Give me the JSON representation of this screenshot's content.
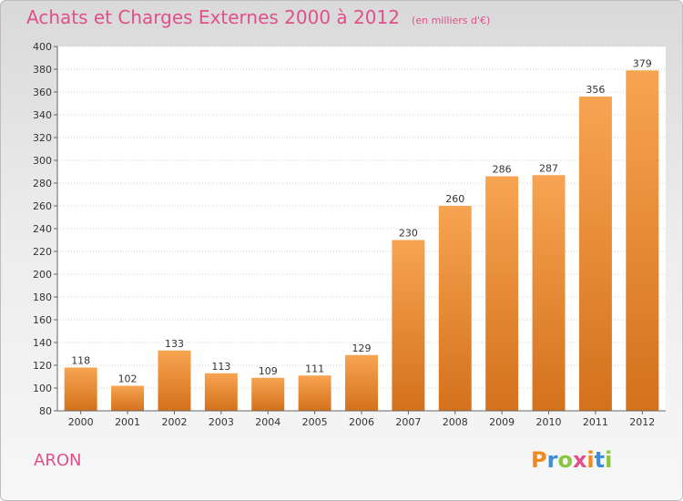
{
  "header": {
    "title": "Achats et Charges Externes 2000 à 2012",
    "subtitle": "(en milliers d'€)"
  },
  "footer": {
    "commune": "ARON",
    "logo": "Proxiti"
  },
  "colors": {
    "title": "#e0508a",
    "bar_top": "#f7a452",
    "bar_bottom": "#d4711c",
    "logo_letters": [
      "#f08a1d",
      "#3b8fd6",
      "#8cc63e",
      "#e0508a",
      "#f08a1d",
      "#3b8fd6",
      "#8cc63e"
    ]
  },
  "chart_data": {
    "type": "bar",
    "title": "Achats et Charges Externes 2000 à 2012",
    "subtitle": "(en milliers d'€)",
    "categories": [
      "2000",
      "2001",
      "2002",
      "2003",
      "2004",
      "2005",
      "2006",
      "2007",
      "2008",
      "2009",
      "2010",
      "2011",
      "2012"
    ],
    "values": [
      118,
      102,
      133,
      113,
      109,
      111,
      129,
      230,
      260,
      286,
      287,
      356,
      379
    ],
    "ylim": [
      80,
      400
    ],
    "yticks": [
      80,
      100,
      120,
      140,
      160,
      180,
      200,
      220,
      240,
      260,
      280,
      300,
      320,
      340,
      360,
      380,
      400
    ],
    "grid": true,
    "data_labels": true,
    "xlabel": "",
    "ylabel": ""
  }
}
